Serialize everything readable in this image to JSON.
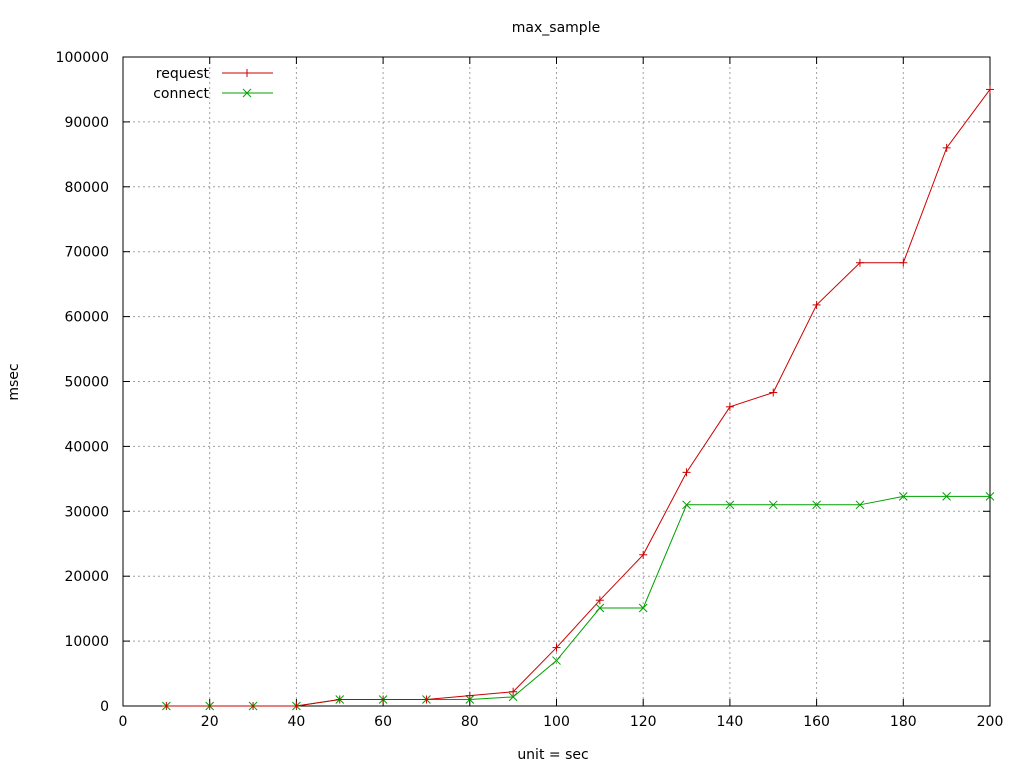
{
  "chart_data": {
    "type": "line",
    "title": "max_sample",
    "xlabel": "unit = sec",
    "ylabel": "msec",
    "xlim": [
      0,
      200
    ],
    "ylim": [
      0,
      100000
    ],
    "xticks": [
      0,
      20,
      40,
      60,
      80,
      100,
      120,
      140,
      160,
      180,
      200
    ],
    "yticks": [
      0,
      10000,
      20000,
      30000,
      40000,
      50000,
      60000,
      70000,
      80000,
      90000,
      100000
    ],
    "grid": true,
    "legend": "top-left",
    "series": [
      {
        "name": "request",
        "color": "#cc0000",
        "marker": "plus",
        "x": [
          10,
          20,
          30,
          40,
          50,
          60,
          70,
          80,
          90,
          100,
          110,
          120,
          130,
          140,
          150,
          160,
          170,
          180,
          190,
          200
        ],
        "y": [
          0,
          0,
          0,
          0,
          1000,
          1000,
          1000,
          1600,
          2200,
          9000,
          16300,
          23300,
          36000,
          46100,
          48300,
          61800,
          68300,
          68300,
          86000,
          95000
        ]
      },
      {
        "name": "connect",
        "color": "#00a000",
        "marker": "cross",
        "x": [
          10,
          20,
          30,
          40,
          50,
          60,
          70,
          80,
          90,
          100,
          110,
          120,
          130,
          140,
          150,
          160,
          170,
          180,
          190,
          200
        ],
        "y": [
          0,
          0,
          0,
          0,
          1000,
          1000,
          1000,
          1000,
          1400,
          7000,
          15100,
          15100,
          31000,
          31000,
          31000,
          31000,
          31000,
          32300,
          32300,
          32300
        ]
      }
    ]
  }
}
